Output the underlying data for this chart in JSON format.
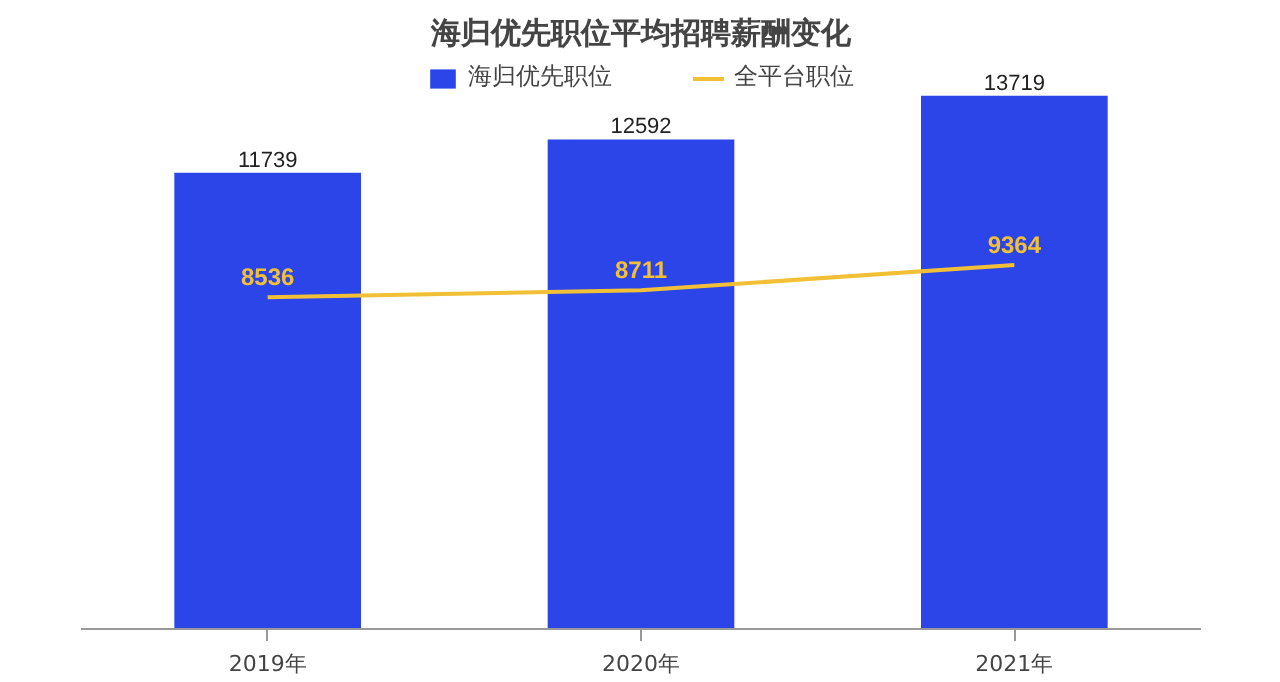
{
  "chart_data": {
    "type": "bar",
    "title": "海归优先职位平均招聘薪酬变化",
    "categories": [
      "2019年",
      "2020年",
      "2021年"
    ],
    "series": [
      {
        "name": "海归优先职位",
        "color": "#2b45e8",
        "values": [
          11739,
          12592,
          13719
        ]
      },
      {
        "name": "全平台职位",
        "type": "line",
        "color": "#f2c037",
        "values": [
          8536,
          8711,
          9364
        ]
      }
    ],
    "data_labels": true,
    "legend": "top",
    "grid": false,
    "tick_labels": "x"
  }
}
